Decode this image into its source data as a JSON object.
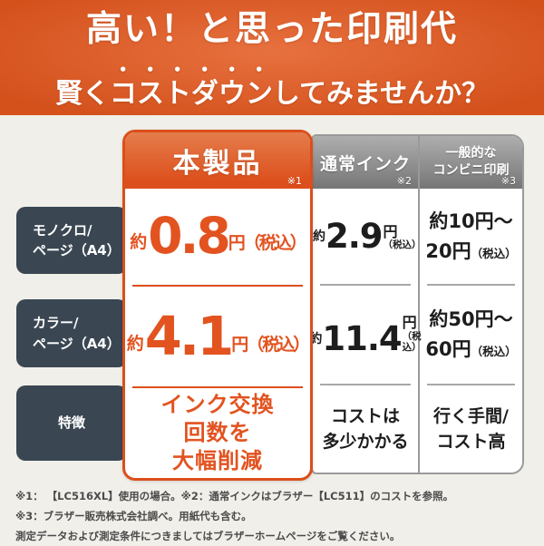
{
  "banner": {
    "line1": "高い！と思った印刷代",
    "line2_prefix": "賢く",
    "line2_emphasis": "コストダウン",
    "line2_suffix": "してみませんか？"
  },
  "table": {
    "row_labels": [
      {
        "line1": "モノクロ/",
        "line2": "ページ（A4）"
      },
      {
        "line1": "カラー/",
        "line2": "ページ（A4）"
      },
      {
        "line1": "特徴"
      }
    ],
    "columns": {
      "product": {
        "header": "本製品",
        "note": "※1",
        "mono": {
          "approx": "約",
          "value": "0.8",
          "unit": "円（税込）"
        },
        "color": {
          "approx": "約",
          "value": "4.1",
          "unit": "円（税込）"
        },
        "feature_lines": [
          "インク交換",
          "回数を",
          "大幅削減"
        ]
      },
      "regular_ink": {
        "header": "通常インク",
        "note": "※2",
        "mono": {
          "approx": "約",
          "value": "2.9",
          "unit": "円",
          "tax": "（税込）"
        },
        "color": {
          "approx": "約",
          "value": "11.4",
          "unit": "円",
          "tax": "（税込）"
        },
        "feature_lines": [
          "コストは",
          "多少かかる"
        ]
      },
      "convenience": {
        "header_line1": "一般的な",
        "header_line2": "コンビニ印刷",
        "note": "※3",
        "mono": {
          "line1": "約10円〜",
          "line2": "20円",
          "tax": "（税込）"
        },
        "color": {
          "line1": "約50円〜",
          "line2": "60円",
          "tax": "（税込）"
        },
        "feature_lines": [
          "行く手間/",
          "コスト高"
        ]
      }
    }
  },
  "footnotes": [
    "※1： 【LC516XL】使用の場合。※2：通常インクはブラザー【LC511】のコストを参照。",
    "※3：ブラザー販売株式会社調べ。用紙代も含む。",
    "測定データおよび測定条件につきましてはブラザーホームページをご覧ください。"
  ],
  "colors": {
    "accent": "#dc4e1b",
    "accentText": "#e25320",
    "bannerTop": "#e7713f",
    "bannerBottom": "#d4511c",
    "slate": "#3a4753",
    "grayHeadTop": "#aeaeae",
    "grayHeadBottom": "#767676",
    "tableBorder": "#9a9a9a",
    "ink": "#1d1d1d",
    "pageBg": "#f1efe9",
    "noteText": "#4b4b4b"
  }
}
